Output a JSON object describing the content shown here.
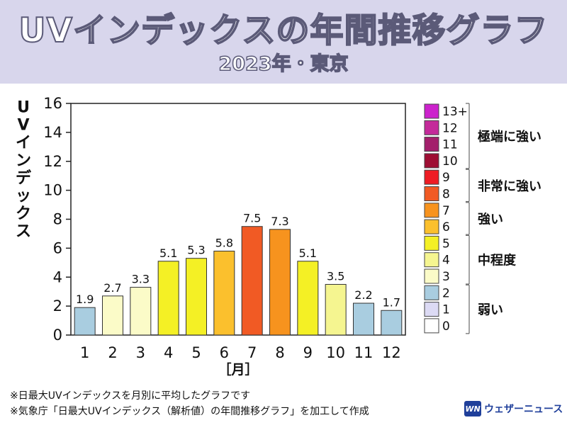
{
  "header": {
    "title": "UVインデックスの年間推移グラフ",
    "subtitle": "2023年・東京"
  },
  "chart_data": {
    "type": "bar",
    "categories": [
      "1",
      "2",
      "3",
      "4",
      "5",
      "6",
      "7",
      "8",
      "9",
      "10",
      "11",
      "12"
    ],
    "values": [
      1.9,
      2.7,
      3.3,
      5.1,
      5.3,
      5.8,
      7.5,
      7.3,
      5.1,
      3.5,
      2.2,
      1.7
    ],
    "data_labels": [
      "1.9",
      "2.7",
      "3.3",
      "5.1",
      "5.3",
      "5.8",
      "7.5",
      "7.3",
      "5.1",
      "3.5",
      "2.2",
      "1.7"
    ],
    "ylabel": "UVインデックス",
    "xlabel": "［月］",
    "ylim": [
      0,
      16
    ],
    "yticks": [
      0,
      2,
      4,
      6,
      8,
      10,
      12,
      14,
      16
    ],
    "grid": false
  },
  "uv_scale": {
    "levels": [
      {
        "label": "13+",
        "color": "#cc22cc"
      },
      {
        "label": "12",
        "color": "#c42a9a"
      },
      {
        "label": "11",
        "color": "#a31f6b"
      },
      {
        "label": "10",
        "color": "#9e0e33"
      },
      {
        "label": "9",
        "color": "#ee1c24"
      },
      {
        "label": "8",
        "color": "#f15a24"
      },
      {
        "label": "7",
        "color": "#f7931e"
      },
      {
        "label": "6",
        "color": "#fbc02d"
      },
      {
        "label": "5",
        "color": "#f4f025"
      },
      {
        "label": "4",
        "color": "#f5f590"
      },
      {
        "label": "3",
        "color": "#fbfbc8"
      },
      {
        "label": "2",
        "color": "#a9cde0"
      },
      {
        "label": "1",
        "color": "#dcdaf4"
      },
      {
        "label": "0",
        "color": "#ffffff"
      }
    ],
    "categories": [
      {
        "label": "極端に強い"
      },
      {
        "label": "非常に強い"
      },
      {
        "label": "強い"
      },
      {
        "label": "中程度"
      },
      {
        "label": "弱い"
      }
    ]
  },
  "footnotes": [
    "※日最大UVインデックスを月別に平均したグラフです",
    "※気象庁「日最大UVインデックス（解析値）の年間推移グラフ」を加工して作成"
  ],
  "logo": {
    "mark": "WN",
    "text": "ウェザーニュース"
  }
}
